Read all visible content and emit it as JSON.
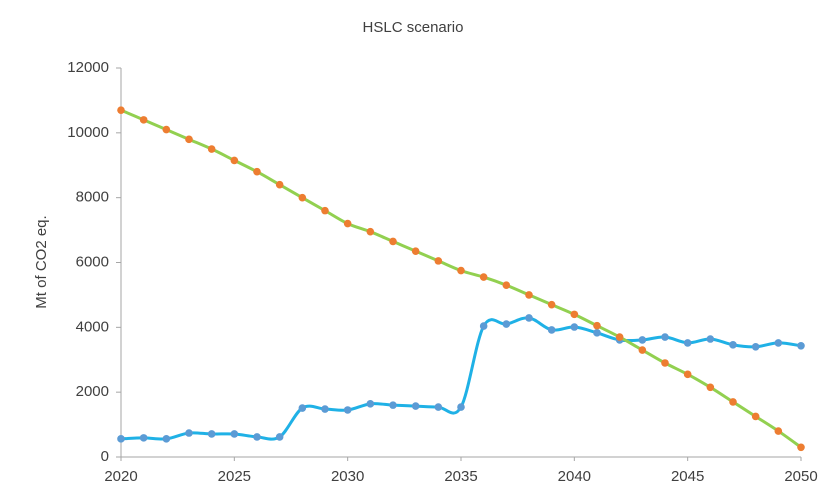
{
  "chart_data": {
    "type": "line",
    "title": "HSLC scenario",
    "y_label": "Mt of CO2 eq.",
    "x": [
      2020,
      2021,
      2022,
      2023,
      2024,
      2025,
      2026,
      2027,
      2028,
      2029,
      2030,
      2031,
      2032,
      2033,
      2034,
      2035,
      2036,
      2037,
      2038,
      2039,
      2040,
      2041,
      2042,
      2043,
      2044,
      2045,
      2046,
      2047,
      2048,
      2049,
      2050
    ],
    "series": [
      {
        "color": "#1fb1e6",
        "marker_color": "#5b9bd5",
        "values": [
          560,
          590,
          560,
          740,
          710,
          710,
          620,
          620,
          1510,
          1480,
          1450,
          1640,
          1600,
          1570,
          1540,
          1540,
          4040,
          4100,
          4290,
          3920,
          4010,
          3830,
          3610,
          3610,
          3700,
          3520,
          3640,
          3460,
          3400,
          3520,
          3430
        ]
      },
      {
        "color": "#92d050",
        "marker_color": "#ed7d31",
        "values": [
          10700,
          10400,
          10100,
          9800,
          9500,
          9150,
          8800,
          8400,
          8000,
          7600,
          7200,
          6950,
          6650,
          6350,
          6050,
          5750,
          5550,
          5300,
          5000,
          4700,
          4400,
          4050,
          3700,
          3300,
          2900,
          2550,
          2150,
          1700,
          1250,
          800,
          300
        ]
      }
    ],
    "xlim": [
      2020,
      2050
    ],
    "xticks": [
      2020,
      2025,
      2030,
      2035,
      2040,
      2045,
      2050
    ],
    "ylim": [
      0,
      12000
    ],
    "yticks": [
      0,
      2000,
      4000,
      6000,
      8000,
      10000,
      12000
    ],
    "smooth": true,
    "grid": false
  }
}
